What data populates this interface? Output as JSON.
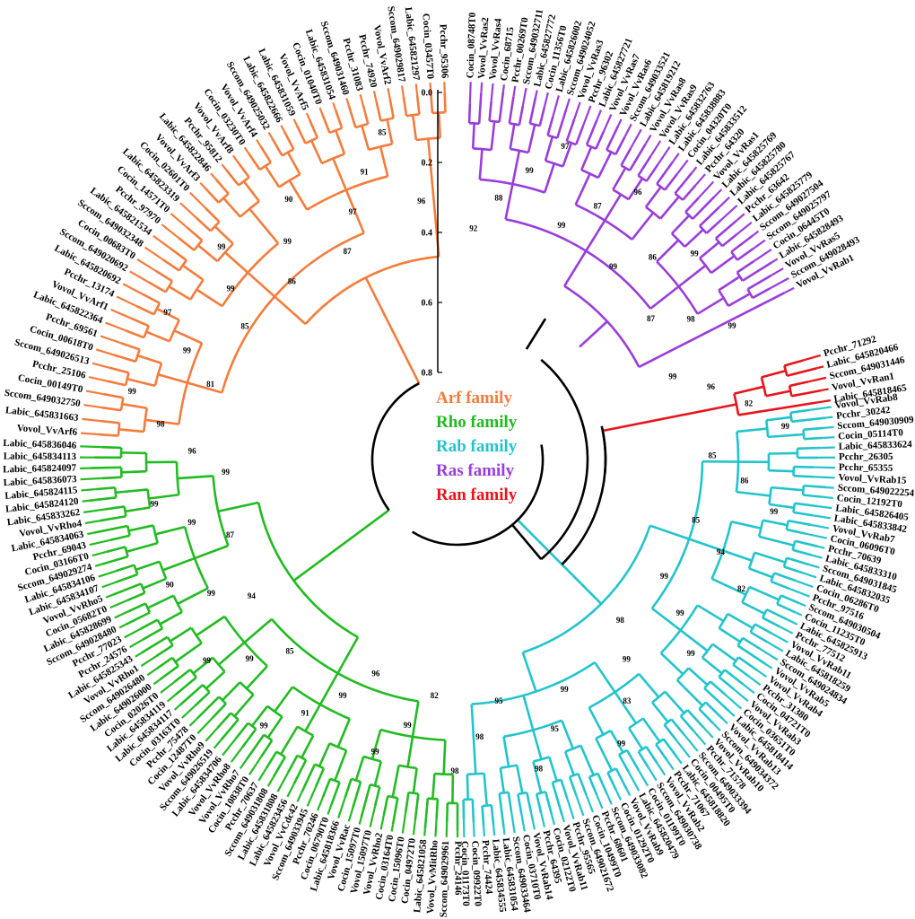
{
  "families": [
    {
      "name": "Arf family",
      "color": "#f47c3c",
      "leaves": [
        "Vovol_VvArf6",
        "Labic_645831663",
        "Sccom_649032750",
        "Cocin_00149T0",
        "Pcchr_25106",
        "Sccom_649026513",
        "Cocin_00618T0",
        "Pcchr_69561",
        "Labic_645822364",
        "Vovol_VvArf1",
        "Pcchr_13174",
        "Labic_645820692",
        "Sccom_649020692",
        "Cocin_00683T0",
        "Sccom_649032348",
        "Labic_645821534",
        "Pcchr_97970",
        "Cocin_14571T0",
        "Labic_645823319",
        "Cocin_02601T0",
        "Vovol_VvArf3",
        "Labic_645822846",
        "Pcchr_95812",
        "Vovol_VvArf8",
        "Cocin_03230T0",
        "Vovol_VvArf4",
        "Sccom_649025032",
        "Labic_645822666",
        "Labic_645831059",
        "Vovol_VvArf5",
        "Cocin_01040T0",
        "Labic_645831054",
        "Sccom_649031460",
        "Pcchr_31083",
        "Pcchr_74920",
        "Vovol_VvArf2",
        "Sccom_649029817",
        "Labic_645821297",
        "Cocin_03457T0",
        "Pcchr_95306"
      ]
    },
    {
      "name": "Rho family",
      "color": "#22bb22",
      "leaves": [
        "Pcchr_24146",
        "Sccom_649029961",
        "Vovol_VvMitRho",
        "Labic_645821058",
        "Cocin_04972T0",
        "Cocin_15096T0",
        "Cocin_03164T0",
        "Vovol_VvRho2",
        "Vovol_15097T0",
        "Cocin_15097T0",
        "Vovol_VvRac",
        "Labic_645818366",
        "Cocin_06790T0",
        "Pcchr_70246",
        "Sccom_649033945",
        "Vovol_VvCdc42",
        "Labic_645823456",
        "Labic_645831808",
        "Sccom_649031808",
        "Pcchr_70637",
        "Cocin_10838T0",
        "Vovol_VvRho7",
        "Vovol_VvRho8",
        "Labic_645834706",
        "Sccom_649026519",
        "Vovol_VvRho9",
        "Cocin_12487T0",
        "Pcchr_75478",
        "Cocin_03163T0",
        "Labic_645834117",
        "Labic_645834119",
        "Cocin_02026T0",
        "Labic_649026000",
        "Sccom_649026480",
        "Vovol_VvRho1",
        "Labic_645825343",
        "Pcchr_24576",
        "Pcchr_77023",
        "Sccom_649028480",
        "Labic_645828699",
        "Cocin_05682T0",
        "Vovol_VvRho5",
        "Labic_645834107",
        "Labic_645834106",
        "Sccom_649029274",
        "Cocin_03166T0",
        "Pcchr_69043",
        "Labic_645834063",
        "Vovol_VvRho4",
        "Labic_645833262",
        "Labic_645824120",
        "Labic_645824115",
        "Labic_645836073",
        "Labic_645824097",
        "Labic_645834113",
        "Labic_645836046"
      ]
    },
    {
      "name": "Rab family",
      "color": "#22c4cc",
      "leaves": [
        "Vovol_VvRab8",
        "Pcchr_30242",
        "Sccom_649030909",
        "Cocin_05114T0",
        "Labic_645833624",
        "Pcchr_26305",
        "Pcchr_65355",
        "Vovol_VvRab15",
        "Sccom_649022254",
        "Cocin_12192T0",
        "Labic_645826405",
        "Labic_645833842",
        "Vovol_VvRab7",
        "Cocin_06096T0",
        "Pcchr_70639",
        "Labic_645833310",
        "Sccom_649031845",
        "Labic_645832035",
        "Cocin_06286T0",
        "Pcchr_97516",
        "Sccom_649030504",
        "Cocin_11235T0",
        "Labic_645825913",
        "Pcchr_77512",
        "Vovol_VvRab11",
        "Labic_645818259",
        "Sccom_649024834",
        "Vovol_VvRab5",
        "Vovol_VvRab4",
        "Pcchr_31380",
        "Cocin_04721T0",
        "Vovol_VvRab3",
        "Cocin_03651T0",
        "Labic_645818414",
        "Vovol_VvRab13",
        "Sccom_649034372",
        "Vovol_VvRab10",
        "Pcchr_71578",
        "Sccom_649033394",
        "Cocin_00495T0",
        "Labic_645818820",
        "Pcchr_71067",
        "Vovol_VvRab2",
        "Sccom_649030738",
        "Cocin_01199T0",
        "Labic_645820479",
        "Vovol_VvRab9",
        "Cocin_01292T0",
        "Sccom_649033082",
        "Pcchr_68601",
        "Cocin_10499T0",
        "Sccom_649021672",
        "Pcchr_95565",
        "Vovol_VvRab11",
        "Cocin_02122T0",
        "Pcchr_64395",
        "Vovol_VvRab14",
        "Cocin_03710T0",
        "Sccom_649033464",
        "Labic_645831054",
        "Labic_645834555",
        "Pcchr_74424",
        "Cocin_09922T0",
        "Cocin_01173T0"
      ]
    },
    {
      "name": "Ras family",
      "color": "#9a3ddb",
      "leaves": [
        "Cocin_08748T0",
        "Vovol_VvRas2",
        "Vovol_VvRas4",
        "Cocin_68715",
        "Pcchr_00269T0",
        "Sccom_649032711",
        "Labic_645827772",
        "Cocin_11356T0",
        "Labic_645826002",
        "Sccom_649024052",
        "Vovol_VvRas3",
        "Pcchr_96302",
        "Labic_645827721",
        "Vovol_VvRas7",
        "Vovol_VvRas6",
        "Sccom_649033521",
        "Labic_645819212",
        "Vovol_VvRas8",
        "Vovol_VvRas9",
        "Labic_645832763",
        "Labic_645838883",
        "Cocin_04320T0",
        "Labic_645833512",
        "Pcchr_64320",
        "Vovol_VvRas1",
        "Labic_645825769",
        "Labic_645825780",
        "Labic_645825767",
        "Pcchr_63642",
        "Labic_645825779",
        "Sccom_649027504",
        "Sccom_649025797",
        "Cocin_06445T0",
        "Labic_645828493",
        "Vovol_VvRas5",
        "Sccom_649028493",
        "Vovol_VvRab1"
      ]
    },
    {
      "name": "Ran family",
      "color": "#e8141c",
      "leaves": [
        "Pcchr_71292",
        "Labic_645820466",
        "Sccom_649031446",
        "Vovol_VvRan1",
        "Labic_645818465"
      ]
    }
  ],
  "support_values": [
    "92",
    "88",
    "99",
    "97",
    "99",
    "87",
    "96",
    "99",
    "86",
    "99",
    "87",
    "98",
    "99",
    "99",
    "96",
    "82",
    "99",
    "85",
    "86",
    "99",
    "85",
    "94",
    "82",
    "99",
    "99",
    "99",
    "98",
    "99",
    "83",
    "99",
    "99",
    "95",
    "98",
    "95",
    "98",
    "98",
    "82",
    "99",
    "99",
    "96",
    "99",
    "91",
    "99",
    "85",
    "99",
    "99",
    "94",
    "99",
    "90",
    "87",
    "99",
    "99",
    "99",
    "96",
    "98",
    "99",
    "81",
    "99",
    "97",
    "85",
    "99",
    "99",
    "86",
    "99",
    "90",
    "87",
    "97",
    "91",
    "85",
    "96"
  ],
  "scale_ticks": [
    "0.0",
    "0.2",
    "0.4",
    "0.6",
    "0.8"
  ],
  "legend": {
    "arf": "Arf family",
    "rho": "Rho family",
    "rab": "Rab family",
    "ras": "Ras family",
    "ran": "Ran family"
  }
}
